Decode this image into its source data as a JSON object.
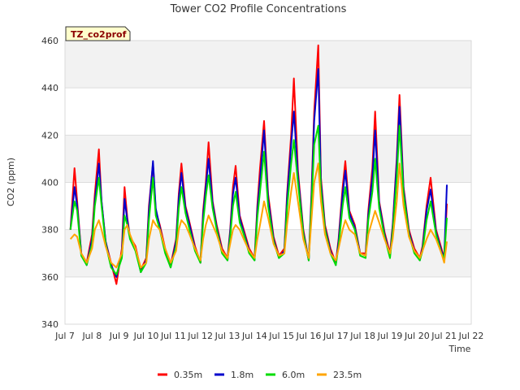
{
  "chart_data": {
    "type": "line",
    "title": "Tower CO2 Profile Concentrations",
    "xlabel": "Time",
    "ylabel": "CO2 (ppm)",
    "badge": "TZ_co2prof",
    "xlim": [
      7,
      22
    ],
    "ylim": [
      340,
      460
    ],
    "yticks": [
      340,
      360,
      380,
      400,
      420,
      440,
      460
    ],
    "xticks": [
      {
        "value": 7,
        "label": "Jul 7"
      },
      {
        "value": 8,
        "label": "Jul 8"
      },
      {
        "value": 9,
        "label": "Jul 9"
      },
      {
        "value": 10,
        "label": "Jul 10"
      },
      {
        "value": 11,
        "label": "Jul 11"
      },
      {
        "value": 12,
        "label": "Jul 12"
      },
      {
        "value": 13,
        "label": "Jul 13"
      },
      {
        "value": 14,
        "label": "Jul 14"
      },
      {
        "value": 15,
        "label": "Jul 15"
      },
      {
        "value": 16,
        "label": "Jul 16"
      },
      {
        "value": 17,
        "label": "Jul 17"
      },
      {
        "value": 18,
        "label": "Jul 18"
      },
      {
        "value": 19,
        "label": "Jul 19"
      },
      {
        "value": 20,
        "label": "Jul 20"
      },
      {
        "value": 21,
        "label": "Jul 21"
      },
      {
        "value": 22,
        "label": "Jul 22"
      }
    ],
    "series": [
      {
        "name": "0.35m",
        "color": "#ff0000",
        "x": [
          7.2,
          7.35,
          7.45,
          7.6,
          7.8,
          8.0,
          8.1,
          8.25,
          8.35,
          8.5,
          8.7,
          8.9,
          9.1,
          9.2,
          9.3,
          9.4,
          9.6,
          9.8,
          10.0,
          10.1,
          10.25,
          10.35,
          10.5,
          10.7,
          10.9,
          11.1,
          11.2,
          11.3,
          11.45,
          11.6,
          11.8,
          12.0,
          12.1,
          12.2,
          12.3,
          12.45,
          12.6,
          12.8,
          13.0,
          13.1,
          13.2,
          13.3,
          13.45,
          13.6,
          13.8,
          14.0,
          14.1,
          14.2,
          14.35,
          14.5,
          14.7,
          14.9,
          15.1,
          15.2,
          15.35,
          15.45,
          15.6,
          15.8,
          16.0,
          16.1,
          16.2,
          16.35,
          16.45,
          16.6,
          16.8,
          17.0,
          17.1,
          17.25,
          17.35,
          17.5,
          17.7,
          17.9,
          18.1,
          18.2,
          18.35,
          18.45,
          18.6,
          18.8,
          19.0,
          19.1,
          19.25,
          19.35,
          19.5,
          19.7,
          19.9,
          20.1,
          20.2,
          20.35,
          20.5,
          20.7,
          20.9,
          21.0,
          21.1
        ],
        "y": [
          380,
          406,
          392,
          370,
          366,
          378,
          395,
          414,
          392,
          375,
          366,
          357,
          372,
          398,
          385,
          377,
          373,
          363,
          368,
          390,
          408,
          388,
          382,
          372,
          365,
          376,
          395,
          408,
          390,
          383,
          373,
          366,
          388,
          400,
          417,
          392,
          382,
          372,
          368,
          380,
          398,
          407,
          386,
          380,
          372,
          368,
          390,
          406,
          426,
          395,
          377,
          369,
          372,
          395,
          420,
          444,
          405,
          380,
          367,
          395,
          430,
          458,
          402,
          382,
          372,
          366,
          376,
          398,
          409,
          388,
          382,
          370,
          370,
          388,
          406,
          430,
          392,
          379,
          370,
          382,
          410,
          437,
          398,
          380,
          372,
          368,
          373,
          390,
          402,
          380,
          372,
          368,
          391
        ]
      },
      {
        "name": "1.8m",
        "color": "#0000cc",
        "x": [
          7.2,
          7.35,
          7.45,
          7.6,
          7.8,
          8.0,
          8.1,
          8.25,
          8.35,
          8.5,
          8.7,
          8.9,
          9.1,
          9.2,
          9.3,
          9.4,
          9.6,
          9.8,
          10.0,
          10.1,
          10.25,
          10.35,
          10.5,
          10.7,
          10.9,
          11.1,
          11.2,
          11.3,
          11.45,
          11.6,
          11.8,
          12.0,
          12.1,
          12.2,
          12.3,
          12.45,
          12.6,
          12.8,
          13.0,
          13.1,
          13.2,
          13.3,
          13.45,
          13.6,
          13.8,
          14.0,
          14.1,
          14.2,
          14.35,
          14.5,
          14.7,
          14.9,
          15.1,
          15.2,
          15.35,
          15.45,
          15.6,
          15.8,
          16.0,
          16.1,
          16.2,
          16.35,
          16.45,
          16.6,
          16.8,
          17.0,
          17.1,
          17.25,
          17.35,
          17.5,
          17.7,
          17.9,
          18.1,
          18.2,
          18.35,
          18.45,
          18.6,
          18.8,
          19.0,
          19.1,
          19.25,
          19.35,
          19.5,
          19.7,
          19.9,
          20.1,
          20.2,
          20.35,
          20.5,
          20.7,
          20.9,
          21.0,
          21.1
        ],
        "y": [
          380,
          398,
          390,
          370,
          365,
          376,
          392,
          408,
          392,
          375,
          365,
          360,
          370,
          393,
          384,
          377,
          372,
          362,
          367,
          388,
          409,
          389,
          381,
          371,
          364,
          375,
          393,
          404,
          389,
          382,
          372,
          366,
          386,
          398,
          410,
          391,
          381,
          371,
          367,
          379,
          395,
          402,
          385,
          379,
          371,
          367,
          388,
          401,
          422,
          393,
          376,
          368,
          371,
          393,
          416,
          430,
          403,
          379,
          367,
          393,
          426,
          448,
          400,
          381,
          371,
          365,
          375,
          395,
          405,
          387,
          381,
          370,
          369,
          386,
          402,
          422,
          391,
          378,
          369,
          381,
          408,
          432,
          397,
          379,
          371,
          367,
          372,
          388,
          397,
          379,
          371,
          368,
          399
        ]
      },
      {
        "name": "6.0m",
        "color": "#00dd00",
        "x": [
          7.2,
          7.35,
          7.45,
          7.6,
          7.8,
          8.0,
          8.1,
          8.25,
          8.35,
          8.5,
          8.7,
          8.9,
          9.1,
          9.2,
          9.3,
          9.4,
          9.6,
          9.8,
          10.0,
          10.1,
          10.25,
          10.35,
          10.5,
          10.7,
          10.9,
          11.1,
          11.2,
          11.3,
          11.45,
          11.6,
          11.8,
          12.0,
          12.1,
          12.2,
          12.3,
          12.45,
          12.6,
          12.8,
          13.0,
          13.1,
          13.2,
          13.3,
          13.45,
          13.6,
          13.8,
          14.0,
          14.1,
          14.2,
          14.35,
          14.5,
          14.7,
          14.9,
          15.1,
          15.2,
          15.35,
          15.45,
          15.6,
          15.8,
          16.0,
          16.1,
          16.2,
          16.35,
          16.45,
          16.6,
          16.8,
          17.0,
          17.1,
          17.25,
          17.35,
          17.5,
          17.7,
          17.9,
          18.1,
          18.2,
          18.35,
          18.45,
          18.6,
          18.8,
          19.0,
          19.1,
          19.25,
          19.35,
          19.5,
          19.7,
          19.9,
          20.1,
          20.2,
          20.35,
          20.5,
          20.7,
          20.9,
          21.0,
          21.1
        ],
        "y": [
          380,
          392,
          388,
          369,
          365,
          374,
          390,
          402,
          390,
          374,
          364,
          361,
          368,
          386,
          382,
          376,
          371,
          362,
          366,
          384,
          402,
          386,
          380,
          370,
          364,
          373,
          389,
          398,
          387,
          380,
          371,
          366,
          383,
          394,
          403,
          389,
          380,
          370,
          367,
          377,
          390,
          396,
          383,
          378,
          370,
          367,
          385,
          396,
          413,
          390,
          375,
          368,
          370,
          389,
          408,
          418,
          400,
          378,
          367,
          390,
          416,
          424,
          397,
          380,
          370,
          365,
          373,
          390,
          398,
          385,
          380,
          369,
          368,
          384,
          396,
          410,
          389,
          377,
          368,
          379,
          402,
          424,
          395,
          378,
          370,
          367,
          371,
          384,
          392,
          378,
          370,
          368,
          385
        ]
      },
      {
        "name": "23.5m",
        "color": "#ffa500",
        "x": [
          7.2,
          7.35,
          7.45,
          7.6,
          7.8,
          8.0,
          8.1,
          8.25,
          8.35,
          8.5,
          8.7,
          8.9,
          9.1,
          9.2,
          9.3,
          9.4,
          9.6,
          9.8,
          10.0,
          10.1,
          10.25,
          10.35,
          10.5,
          10.7,
          10.9,
          11.1,
          11.2,
          11.3,
          11.45,
          11.6,
          11.8,
          12.0,
          12.1,
          12.2,
          12.3,
          12.45,
          12.6,
          12.8,
          13.0,
          13.1,
          13.2,
          13.3,
          13.45,
          13.6,
          13.8,
          14.0,
          14.1,
          14.2,
          14.35,
          14.5,
          14.7,
          14.9,
          15.1,
          15.2,
          15.35,
          15.45,
          15.6,
          15.8,
          16.0,
          16.1,
          16.2,
          16.35,
          16.45,
          16.6,
          16.8,
          17.0,
          17.1,
          17.25,
          17.35,
          17.5,
          17.7,
          17.9,
          18.1,
          18.2,
          18.35,
          18.45,
          18.6,
          18.8,
          19.0,
          19.1,
          19.25,
          19.35,
          19.5,
          19.7,
          19.9,
          20.1,
          20.2,
          20.35,
          20.5,
          20.7,
          20.9,
          21.0,
          21.1
        ],
        "y": [
          376,
          378,
          377,
          370,
          366,
          372,
          380,
          384,
          380,
          373,
          366,
          364,
          370,
          380,
          382,
          378,
          372,
          364,
          366,
          376,
          384,
          382,
          380,
          372,
          366,
          371,
          380,
          384,
          382,
          378,
          372,
          367,
          376,
          382,
          386,
          382,
          378,
          371,
          368,
          374,
          380,
          382,
          380,
          376,
          371,
          368,
          376,
          382,
          392,
          385,
          374,
          369,
          370,
          382,
          396,
          404,
          392,
          376,
          368,
          384,
          400,
          408,
          392,
          378,
          370,
          367,
          372,
          380,
          384,
          380,
          378,
          370,
          369,
          378,
          384,
          388,
          383,
          376,
          370,
          376,
          392,
          408,
          390,
          377,
          371,
          368,
          371,
          376,
          380,
          376,
          370,
          366,
          375
        ]
      }
    ]
  }
}
